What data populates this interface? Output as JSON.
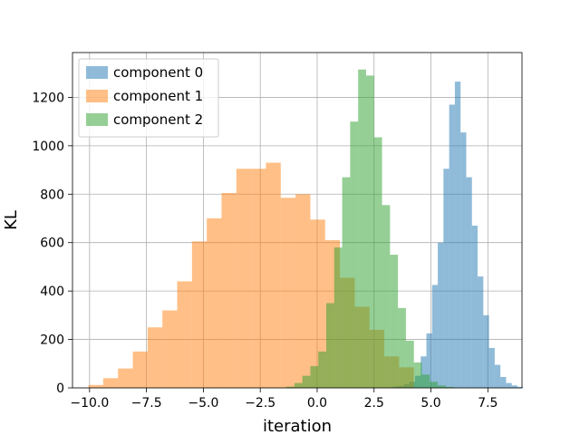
{
  "chart_data": {
    "type": "histogram",
    "title": "",
    "xlabel": "iteration",
    "ylabel": "KL",
    "xlim": [
      -10.75,
      9.0
    ],
    "ylim": [
      0,
      1385
    ],
    "grid": true,
    "legend_position": "top-left",
    "xticks": [
      -10.0,
      -7.5,
      -5.0,
      -2.5,
      0.0,
      2.5,
      5.0,
      7.5
    ],
    "xtick_labels": [
      "−10.0",
      "−7.5",
      "−5.0",
      "−2.5",
      "0.0",
      "2.5",
      "5.0",
      "7.5"
    ],
    "yticks": [
      0,
      200,
      400,
      600,
      800,
      1000,
      1200
    ],
    "ytick_labels": [
      "0",
      "200",
      "400",
      "600",
      "800",
      "1000",
      "1200"
    ],
    "series": [
      {
        "name": "component 0",
        "color": "#1f77b4",
        "alpha": 0.5,
        "bins": [
          {
            "x0": 3.3,
            "x1": 3.55,
            "count": 5
          },
          {
            "x0": 3.55,
            "x1": 3.8,
            "count": 8
          },
          {
            "x0": 3.8,
            "x1": 4.05,
            "count": 15
          },
          {
            "x0": 4.05,
            "x1": 4.3,
            "count": 25
          },
          {
            "x0": 4.3,
            "x1": 4.55,
            "count": 50
          },
          {
            "x0": 4.55,
            "x1": 4.8,
            "count": 130
          },
          {
            "x0": 4.8,
            "x1": 5.05,
            "count": 225
          },
          {
            "x0": 5.05,
            "x1": 5.3,
            "count": 425
          },
          {
            "x0": 5.3,
            "x1": 5.55,
            "count": 600
          },
          {
            "x0": 5.55,
            "x1": 5.8,
            "count": 905
          },
          {
            "x0": 5.8,
            "x1": 6.05,
            "count": 1170
          },
          {
            "x0": 6.05,
            "x1": 6.3,
            "count": 1265
          },
          {
            "x0": 6.3,
            "x1": 6.55,
            "count": 1055
          },
          {
            "x0": 6.55,
            "x1": 6.8,
            "count": 870
          },
          {
            "x0": 6.8,
            "x1": 7.05,
            "count": 670
          },
          {
            "x0": 7.05,
            "x1": 7.3,
            "count": 460
          },
          {
            "x0": 7.3,
            "x1": 7.55,
            "count": 300
          },
          {
            "x0": 7.55,
            "x1": 7.8,
            "count": 165
          },
          {
            "x0": 7.8,
            "x1": 8.05,
            "count": 95
          },
          {
            "x0": 8.05,
            "x1": 8.3,
            "count": 45
          },
          {
            "x0": 8.3,
            "x1": 8.55,
            "count": 20
          },
          {
            "x0": 8.55,
            "x1": 8.8,
            "count": 10
          },
          {
            "x0": 8.8,
            "x1": 9.05,
            "count": 4
          }
        ]
      },
      {
        "name": "component 1",
        "color": "#ff7f0e",
        "alpha": 0.5,
        "bins": [
          {
            "x0": -10.05,
            "x1": -9.4,
            "count": 12
          },
          {
            "x0": -9.4,
            "x1": -8.75,
            "count": 40
          },
          {
            "x0": -8.75,
            "x1": -8.1,
            "count": 80
          },
          {
            "x0": -8.1,
            "x1": -7.45,
            "count": 150
          },
          {
            "x0": -7.45,
            "x1": -6.8,
            "count": 250
          },
          {
            "x0": -6.8,
            "x1": -6.15,
            "count": 320
          },
          {
            "x0": -6.15,
            "x1": -5.5,
            "count": 440
          },
          {
            "x0": -5.5,
            "x1": -4.85,
            "count": 605
          },
          {
            "x0": -4.85,
            "x1": -4.2,
            "count": 700
          },
          {
            "x0": -4.2,
            "x1": -3.55,
            "count": 805
          },
          {
            "x0": -3.55,
            "x1": -2.9,
            "count": 905
          },
          {
            "x0": -2.9,
            "x1": -2.25,
            "count": 905
          },
          {
            "x0": -2.25,
            "x1": -1.6,
            "count": 930
          },
          {
            "x0": -1.6,
            "x1": -0.95,
            "count": 785
          },
          {
            "x0": -0.95,
            "x1": -0.3,
            "count": 800
          },
          {
            "x0": -0.3,
            "x1": 0.35,
            "count": 695
          },
          {
            "x0": 0.35,
            "x1": 1.0,
            "count": 610
          },
          {
            "x0": 1.0,
            "x1": 1.65,
            "count": 455
          },
          {
            "x0": 1.65,
            "x1": 2.3,
            "count": 335
          },
          {
            "x0": 2.3,
            "x1": 2.95,
            "count": 240
          },
          {
            "x0": 2.95,
            "x1": 3.6,
            "count": 130
          },
          {
            "x0": 3.6,
            "x1": 4.25,
            "count": 85
          }
        ]
      },
      {
        "name": "component 2",
        "color": "#2ca02c",
        "alpha": 0.5,
        "bins": [
          {
            "x0": -1.35,
            "x1": -1.0,
            "count": 5
          },
          {
            "x0": -1.0,
            "x1": -0.65,
            "count": 20
          },
          {
            "x0": -0.65,
            "x1": -0.3,
            "count": 50
          },
          {
            "x0": -0.3,
            "x1": 0.05,
            "count": 90
          },
          {
            "x0": 0.05,
            "x1": 0.4,
            "count": 150
          },
          {
            "x0": 0.4,
            "x1": 0.75,
            "count": 350
          },
          {
            "x0": 0.75,
            "x1": 1.1,
            "count": 580
          },
          {
            "x0": 1.1,
            "x1": 1.45,
            "count": 870
          },
          {
            "x0": 1.45,
            "x1": 1.8,
            "count": 1100
          },
          {
            "x0": 1.8,
            "x1": 2.15,
            "count": 1315
          },
          {
            "x0": 2.15,
            "x1": 2.5,
            "count": 1290
          },
          {
            "x0": 2.5,
            "x1": 2.85,
            "count": 1035
          },
          {
            "x0": 2.85,
            "x1": 3.2,
            "count": 755
          },
          {
            "x0": 3.2,
            "x1": 3.55,
            "count": 550
          },
          {
            "x0": 3.55,
            "x1": 3.9,
            "count": 330
          },
          {
            "x0": 3.9,
            "x1": 4.25,
            "count": 195
          },
          {
            "x0": 4.25,
            "x1": 4.6,
            "count": 105
          },
          {
            "x0": 4.6,
            "x1": 4.95,
            "count": 55
          },
          {
            "x0": 4.95,
            "x1": 5.3,
            "count": 25
          },
          {
            "x0": 5.3,
            "x1": 5.65,
            "count": 10
          },
          {
            "x0": 5.65,
            "x1": 6.0,
            "count": 4
          }
        ]
      }
    ]
  }
}
